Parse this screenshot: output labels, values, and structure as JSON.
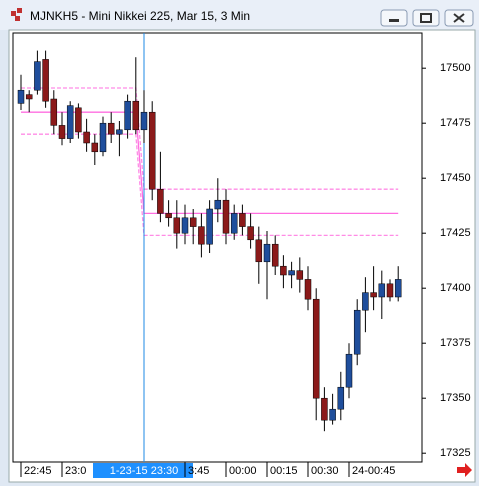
{
  "chart_data": {
    "type": "candlestick",
    "title": "MJNKH5 - Mini Nikkei 225, Mar 15, 3 Min",
    "categories": [
      "22:45",
      null,
      null,
      null,
      null,
      "23:0",
      null,
      null,
      null,
      null,
      null,
      null,
      null,
      null,
      null,
      "1-23-15 23:30",
      null,
      null,
      null,
      null,
      "3:45",
      null,
      null,
      null,
      null,
      "00:00",
      null,
      null,
      null,
      null,
      "00:15",
      null,
      null,
      null,
      null,
      "00:30",
      null,
      null,
      null,
      null,
      "24-00:45",
      null,
      null,
      null,
      null,
      null,
      null
    ],
    "open": [
      17484,
      17488,
      17490,
      17504,
      17486,
      17474,
      17468,
      17482,
      17471,
      17466,
      17462,
      17475,
      17470,
      17472,
      17485,
      17472,
      17480,
      17445,
      17434,
      17432,
      17425,
      17432,
      17428,
      17420,
      17436,
      17440,
      17425,
      17434,
      17428,
      17422,
      17412,
      17420,
      17410,
      17406,
      17408,
      17404,
      17395,
      17350,
      17340,
      17345,
      17355,
      17370,
      17390,
      17398,
      17396,
      17402,
      17396
    ],
    "high": [
      17497,
      17490,
      17508,
      17508,
      17490,
      17480,
      17485,
      17484,
      17477,
      17470,
      17478,
      17480,
      17476,
      17488,
      17505,
      17490,
      17485,
      17462,
      17440,
      17440,
      17438,
      17436,
      17434,
      17440,
      17450,
      17445,
      17438,
      17438,
      17434,
      17428,
      17426,
      17424,
      17415,
      17412,
      17414,
      17410,
      17400,
      17355,
      17352,
      17362,
      17375,
      17395,
      17405,
      17410,
      17408,
      17404,
      17410
    ],
    "low": [
      17481,
      17480,
      17488,
      17482,
      17470,
      17465,
      17466,
      17468,
      17462,
      17456,
      17460,
      17466,
      17460,
      17468,
      17470,
      17466,
      17440,
      17430,
      17428,
      17418,
      17420,
      17420,
      17414,
      17416,
      17430,
      17420,
      17422,
      17424,
      17418,
      17402,
      17395,
      17406,
      17400,
      17400,
      17398,
      17390,
      17340,
      17335,
      17338,
      17340,
      17350,
      17365,
      17380,
      17390,
      17386,
      17394,
      17394
    ],
    "close": [
      17490,
      17486,
      17503,
      17485,
      17474,
      17468,
      17483,
      17471,
      17466,
      17462,
      17475,
      17470,
      17472,
      17485,
      17472,
      17480,
      17445,
      17434,
      17432,
      17425,
      17432,
      17428,
      17420,
      17436,
      17440,
      17425,
      17434,
      17428,
      17422,
      17412,
      17420,
      17410,
      17406,
      17408,
      17404,
      17395,
      17350,
      17340,
      17345,
      17355,
      17370,
      17390,
      17398,
      17396,
      17402,
      17396,
      17404
    ],
    "up_color": "#1f4e9c",
    "down_color": "#8b1a1a",
    "series": [
      {
        "color": "#ff8ce6",
        "dashed": true,
        "values": [
          17491,
          17491,
          17491,
          17491,
          17491,
          17491,
          17491,
          17491,
          17491,
          17491,
          17491,
          17491,
          17491,
          17491,
          17491,
          17445,
          17445,
          17445,
          17445,
          17445,
          17445,
          17445,
          17445,
          17445,
          17445,
          17445,
          17445,
          17445,
          17445,
          17445,
          17445,
          17445,
          17445,
          17445,
          17445,
          17445,
          17445,
          17445,
          17445,
          17445,
          17445,
          17445,
          17445,
          17445,
          17445,
          17445,
          17445
        ]
      },
      {
        "color": "#ff6ee0",
        "dashed": false,
        "values": [
          17480,
          17480,
          17480,
          17480,
          17480,
          17480,
          17480,
          17480,
          17480,
          17480,
          17480,
          17480,
          17480,
          17480,
          17480,
          17434,
          17434,
          17434,
          17434,
          17434,
          17434,
          17434,
          17434,
          17434,
          17434,
          17434,
          17434,
          17434,
          17434,
          17434,
          17434,
          17434,
          17434,
          17434,
          17434,
          17434,
          17434,
          17434,
          17434,
          17434,
          17434,
          17434,
          17434,
          17434,
          17434,
          17434,
          17434
        ]
      },
      {
        "color": "#ff8ce6",
        "dashed": true,
        "values": [
          17470,
          17470,
          17470,
          17470,
          17470,
          17470,
          17470,
          17470,
          17470,
          17470,
          17470,
          17470,
          17470,
          17470,
          17470,
          17424,
          17424,
          17424,
          17424,
          17424,
          17424,
          17424,
          17424,
          17424,
          17424,
          17424,
          17424,
          17424,
          17424,
          17424,
          17424,
          17424,
          17424,
          17424,
          17424,
          17424,
          17424,
          17424,
          17424,
          17424,
          17424,
          17424,
          17424,
          17424,
          17424,
          17424,
          17424
        ]
      }
    ],
    "ylim": [
      17321,
      17516
    ],
    "yticks": [
      17325,
      17350,
      17375,
      17400,
      17425,
      17450,
      17475,
      17500
    ]
  }
}
